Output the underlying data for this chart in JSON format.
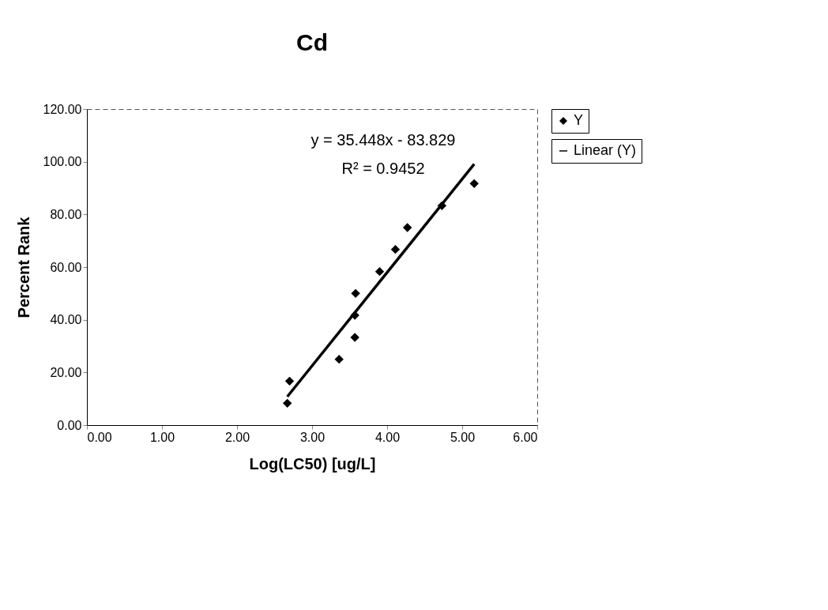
{
  "chart_data": {
    "type": "scatter",
    "title": "Cd",
    "xlabel": "Log(LC50) [ug/L]",
    "ylabel": "Percent Rank",
    "annotations": [
      "y = 35.448x - 83.829",
      "R² = 0.9452"
    ],
    "series": [
      {
        "name": "Y",
        "color": "#000000",
        "marker": "diamond",
        "x": [
          2.67,
          2.7,
          3.36,
          3.57,
          3.57,
          3.58,
          3.9,
          4.11,
          4.27,
          4.73,
          5.16
        ],
        "values": [
          8.3,
          16.7,
          25.0,
          33.3,
          41.7,
          50.0,
          58.3,
          66.7,
          75.0,
          83.3,
          91.7
        ]
      },
      {
        "name": "Linear (Y)",
        "type": "line",
        "color": "#000000",
        "line_style": "solid",
        "x": [
          2.67,
          5.16
        ],
        "values": [
          10.8,
          99.1
        ]
      }
    ],
    "xlim": [
      0,
      6
    ],
    "ylim": [
      0,
      120
    ],
    "xticks": [
      {
        "value": 0,
        "label": "0.00"
      },
      {
        "value": 1,
        "label": "1.00"
      },
      {
        "value": 2,
        "label": "2.00"
      },
      {
        "value": 3,
        "label": "3.00"
      },
      {
        "value": 4,
        "label": "4.00"
      },
      {
        "value": 5,
        "label": "5.00"
      },
      {
        "value": 6,
        "label": "6.00"
      }
    ],
    "yticks": [
      {
        "value": 0,
        "label": "0.00"
      },
      {
        "value": 20,
        "label": "20.00"
      },
      {
        "value": 40,
        "label": "40.00"
      },
      {
        "value": 60,
        "label": "60.00"
      },
      {
        "value": 80,
        "label": "80.00"
      },
      {
        "value": 100,
        "label": "100.00"
      },
      {
        "value": 120,
        "label": "120.00"
      }
    ],
    "grid": false,
    "legend": "right"
  }
}
